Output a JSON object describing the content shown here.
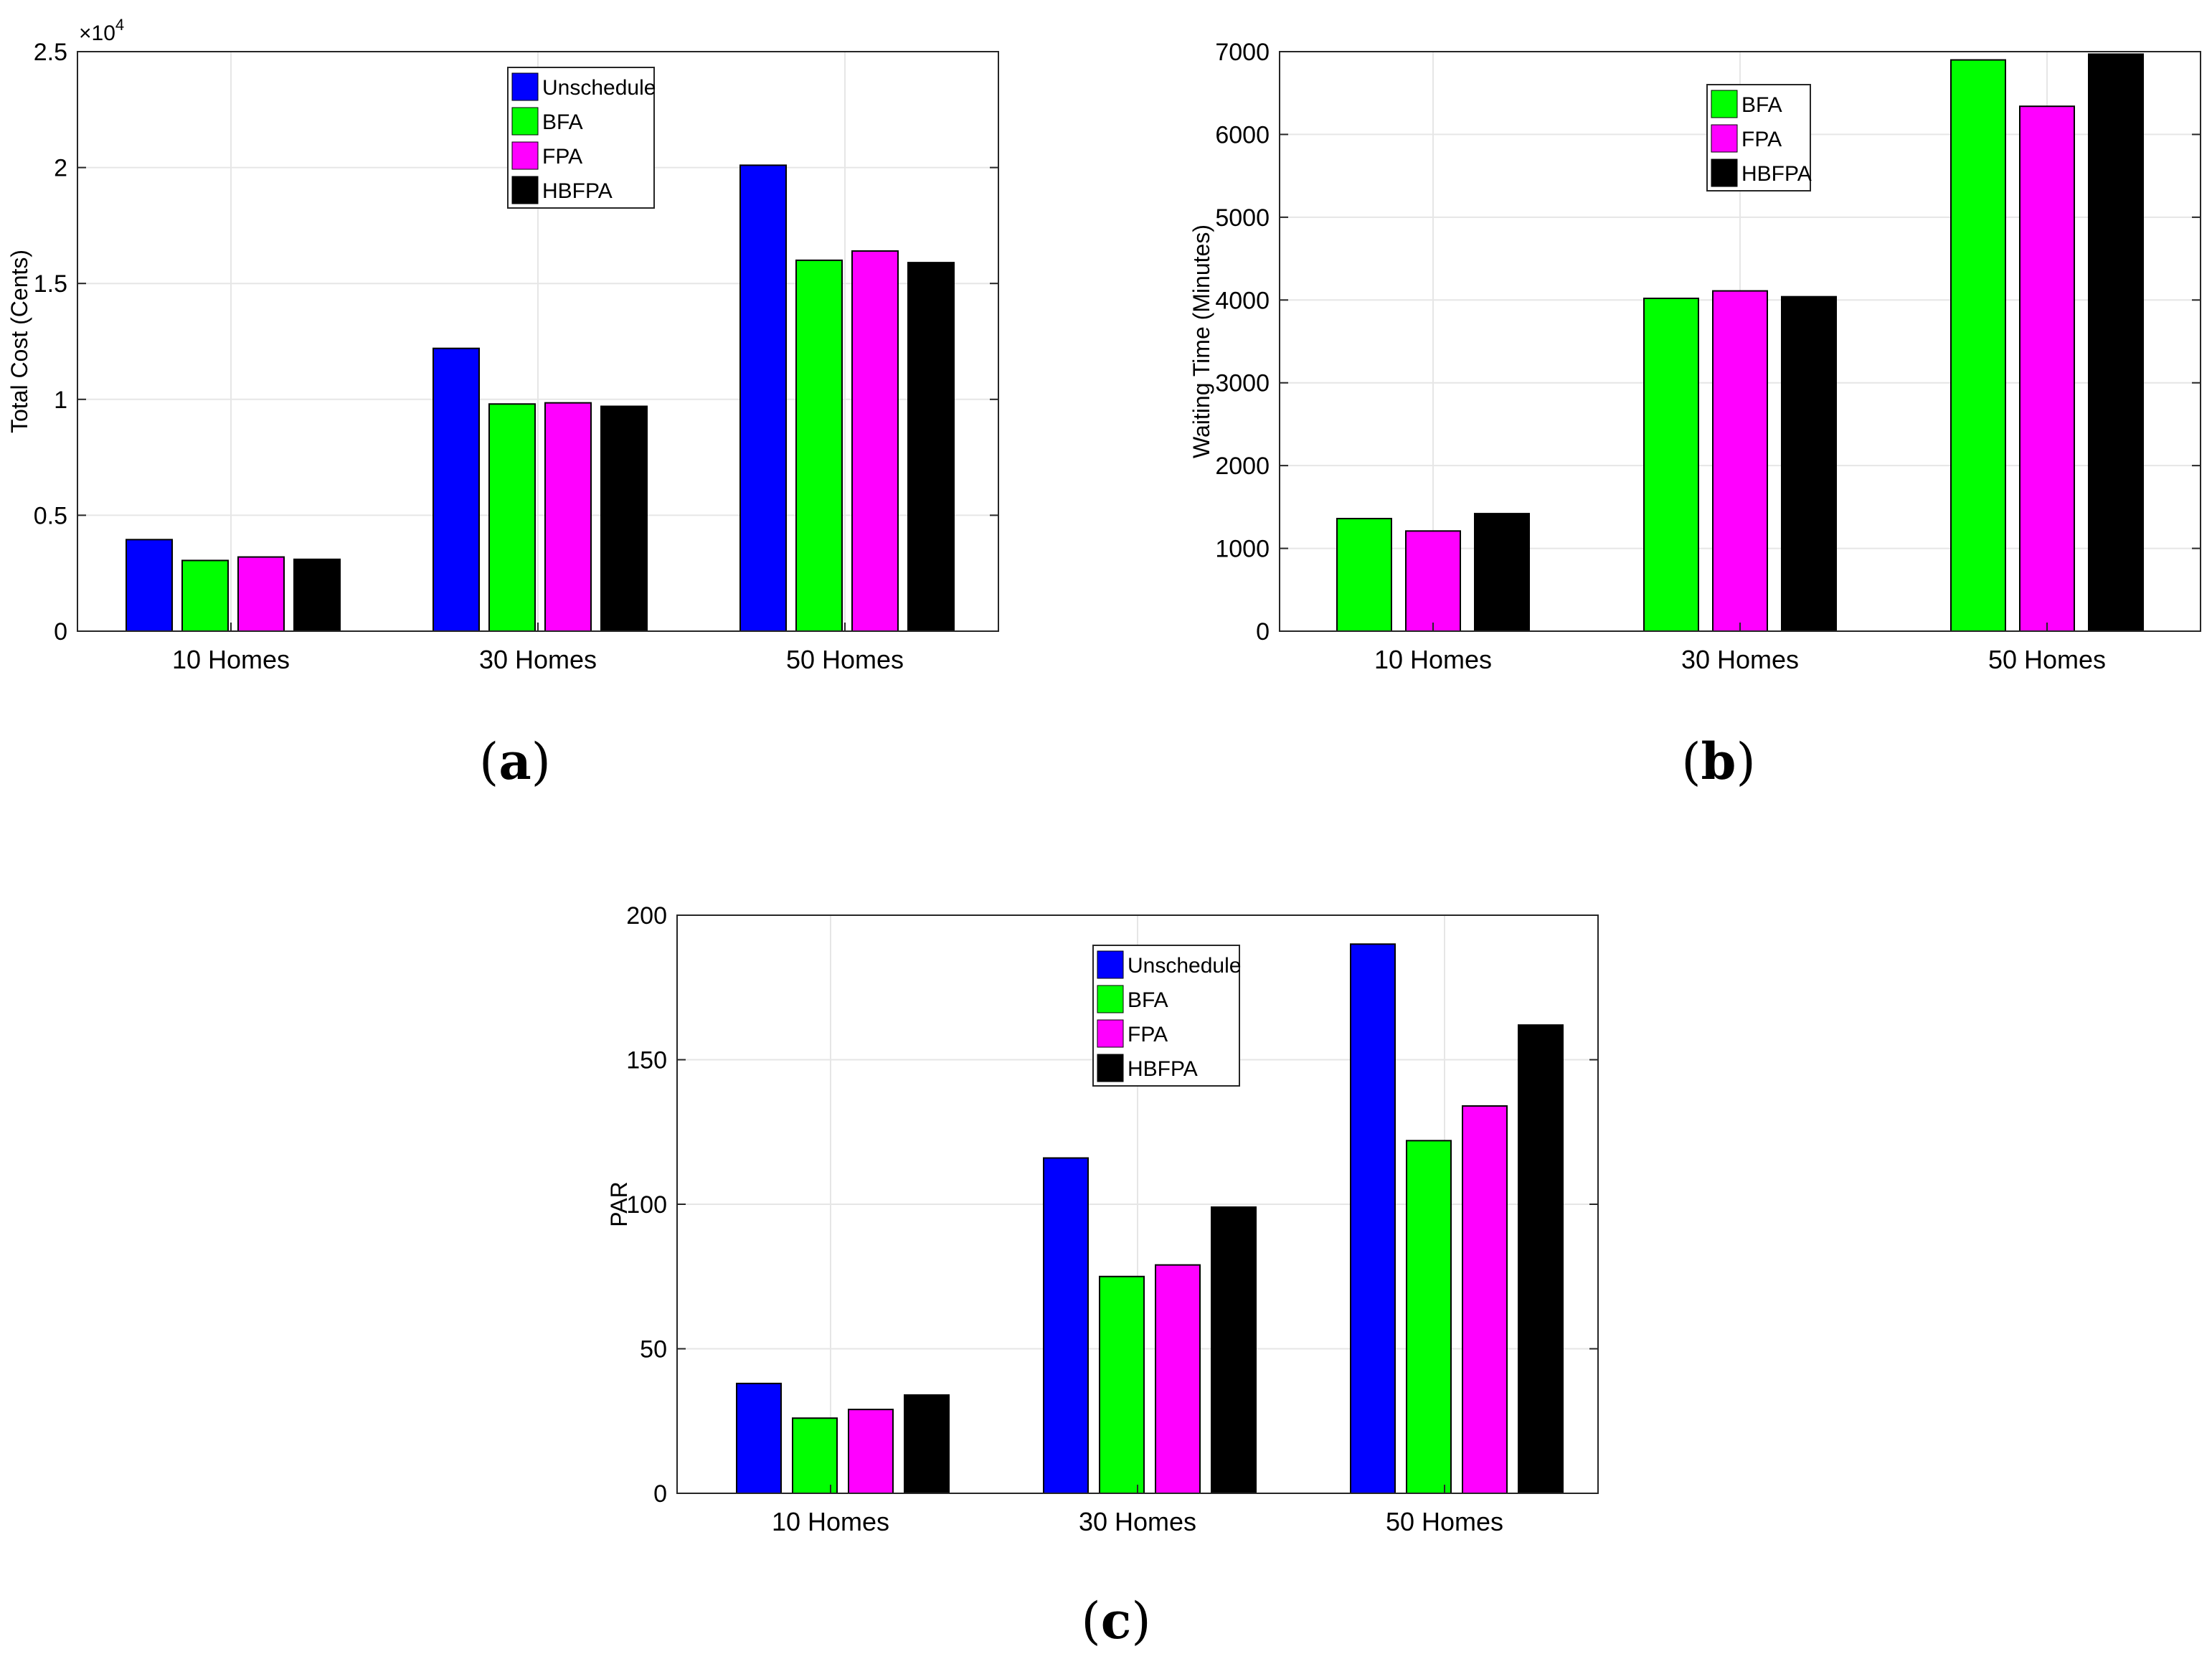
{
  "figure": {
    "captions": [
      {
        "open": "(",
        "letter": "a",
        "close": ")"
      },
      {
        "open": "(",
        "letter": "b",
        "close": ")"
      },
      {
        "open": "(",
        "letter": "c",
        "close": ")"
      }
    ]
  },
  "colors": {
    "Unschedule": "#0000ff",
    "BFA": "#00ff00",
    "FPA": "#ff00ff",
    "HBFPA": "#000000",
    "grid": "#e6e6e6",
    "axis": "#262626"
  },
  "chart_data": [
    {
      "id": "a",
      "type": "bar",
      "categories": [
        "10 Homes",
        "30 Homes",
        "50 Homes"
      ],
      "series": [
        {
          "name": "Unschedule",
          "values": [
            3950,
            12200,
            20100
          ]
        },
        {
          "name": "BFA",
          "values": [
            3050,
            9800,
            16000
          ]
        },
        {
          "name": "FPA",
          "values": [
            3200,
            9850,
            16400
          ]
        },
        {
          "name": "HBFPA",
          "values": [
            3100,
            9700,
            15900
          ]
        }
      ],
      "title": "",
      "xlabel": "",
      "ylabel": "Total Cost (Cents)",
      "ylim": [
        0,
        25000
      ],
      "yticks": [
        0,
        5000,
        10000,
        15000,
        20000,
        25000
      ],
      "ytick_labels": [
        "0",
        "0.5",
        "1",
        "1.5",
        "2",
        "2.5"
      ],
      "multiplier": {
        "base": "×10",
        "exp": "4"
      },
      "grid": true,
      "legend": "top-center"
    },
    {
      "id": "b",
      "type": "bar",
      "categories": [
        "10 Homes",
        "30 Homes",
        "50 Homes"
      ],
      "series": [
        {
          "name": "BFA",
          "values": [
            1360,
            4020,
            6900
          ]
        },
        {
          "name": "FPA",
          "values": [
            1210,
            4110,
            6340
          ]
        },
        {
          "name": "HBFPA",
          "values": [
            1420,
            4040,
            6970
          ]
        }
      ],
      "title": "",
      "xlabel": "",
      "ylabel": "Waiting Time (Minutes)",
      "ylim": [
        0,
        7000
      ],
      "yticks": [
        0,
        1000,
        2000,
        3000,
        4000,
        5000,
        6000,
        7000
      ],
      "ytick_labels": [
        "0",
        "1000",
        "2000",
        "3000",
        "4000",
        "5000",
        "6000",
        "7000"
      ],
      "grid": true,
      "legend": "top-center"
    },
    {
      "id": "c",
      "type": "bar",
      "categories": [
        "10 Homes",
        "30 Homes",
        "50 Homes"
      ],
      "series": [
        {
          "name": "Unschedule",
          "values": [
            38,
            116,
            190
          ]
        },
        {
          "name": "BFA",
          "values": [
            26,
            75,
            122
          ]
        },
        {
          "name": "FPA",
          "values": [
            29,
            79,
            134
          ]
        },
        {
          "name": "HBFPA",
          "values": [
            34,
            99,
            162
          ]
        }
      ],
      "title": "",
      "xlabel": "",
      "ylabel": "PAR",
      "ylim": [
        0,
        200
      ],
      "yticks": [
        0,
        50,
        100,
        150,
        200
      ],
      "ytick_labels": [
        "0",
        "50",
        "100",
        "150",
        "200"
      ],
      "grid": true,
      "legend": "top-center"
    }
  ]
}
